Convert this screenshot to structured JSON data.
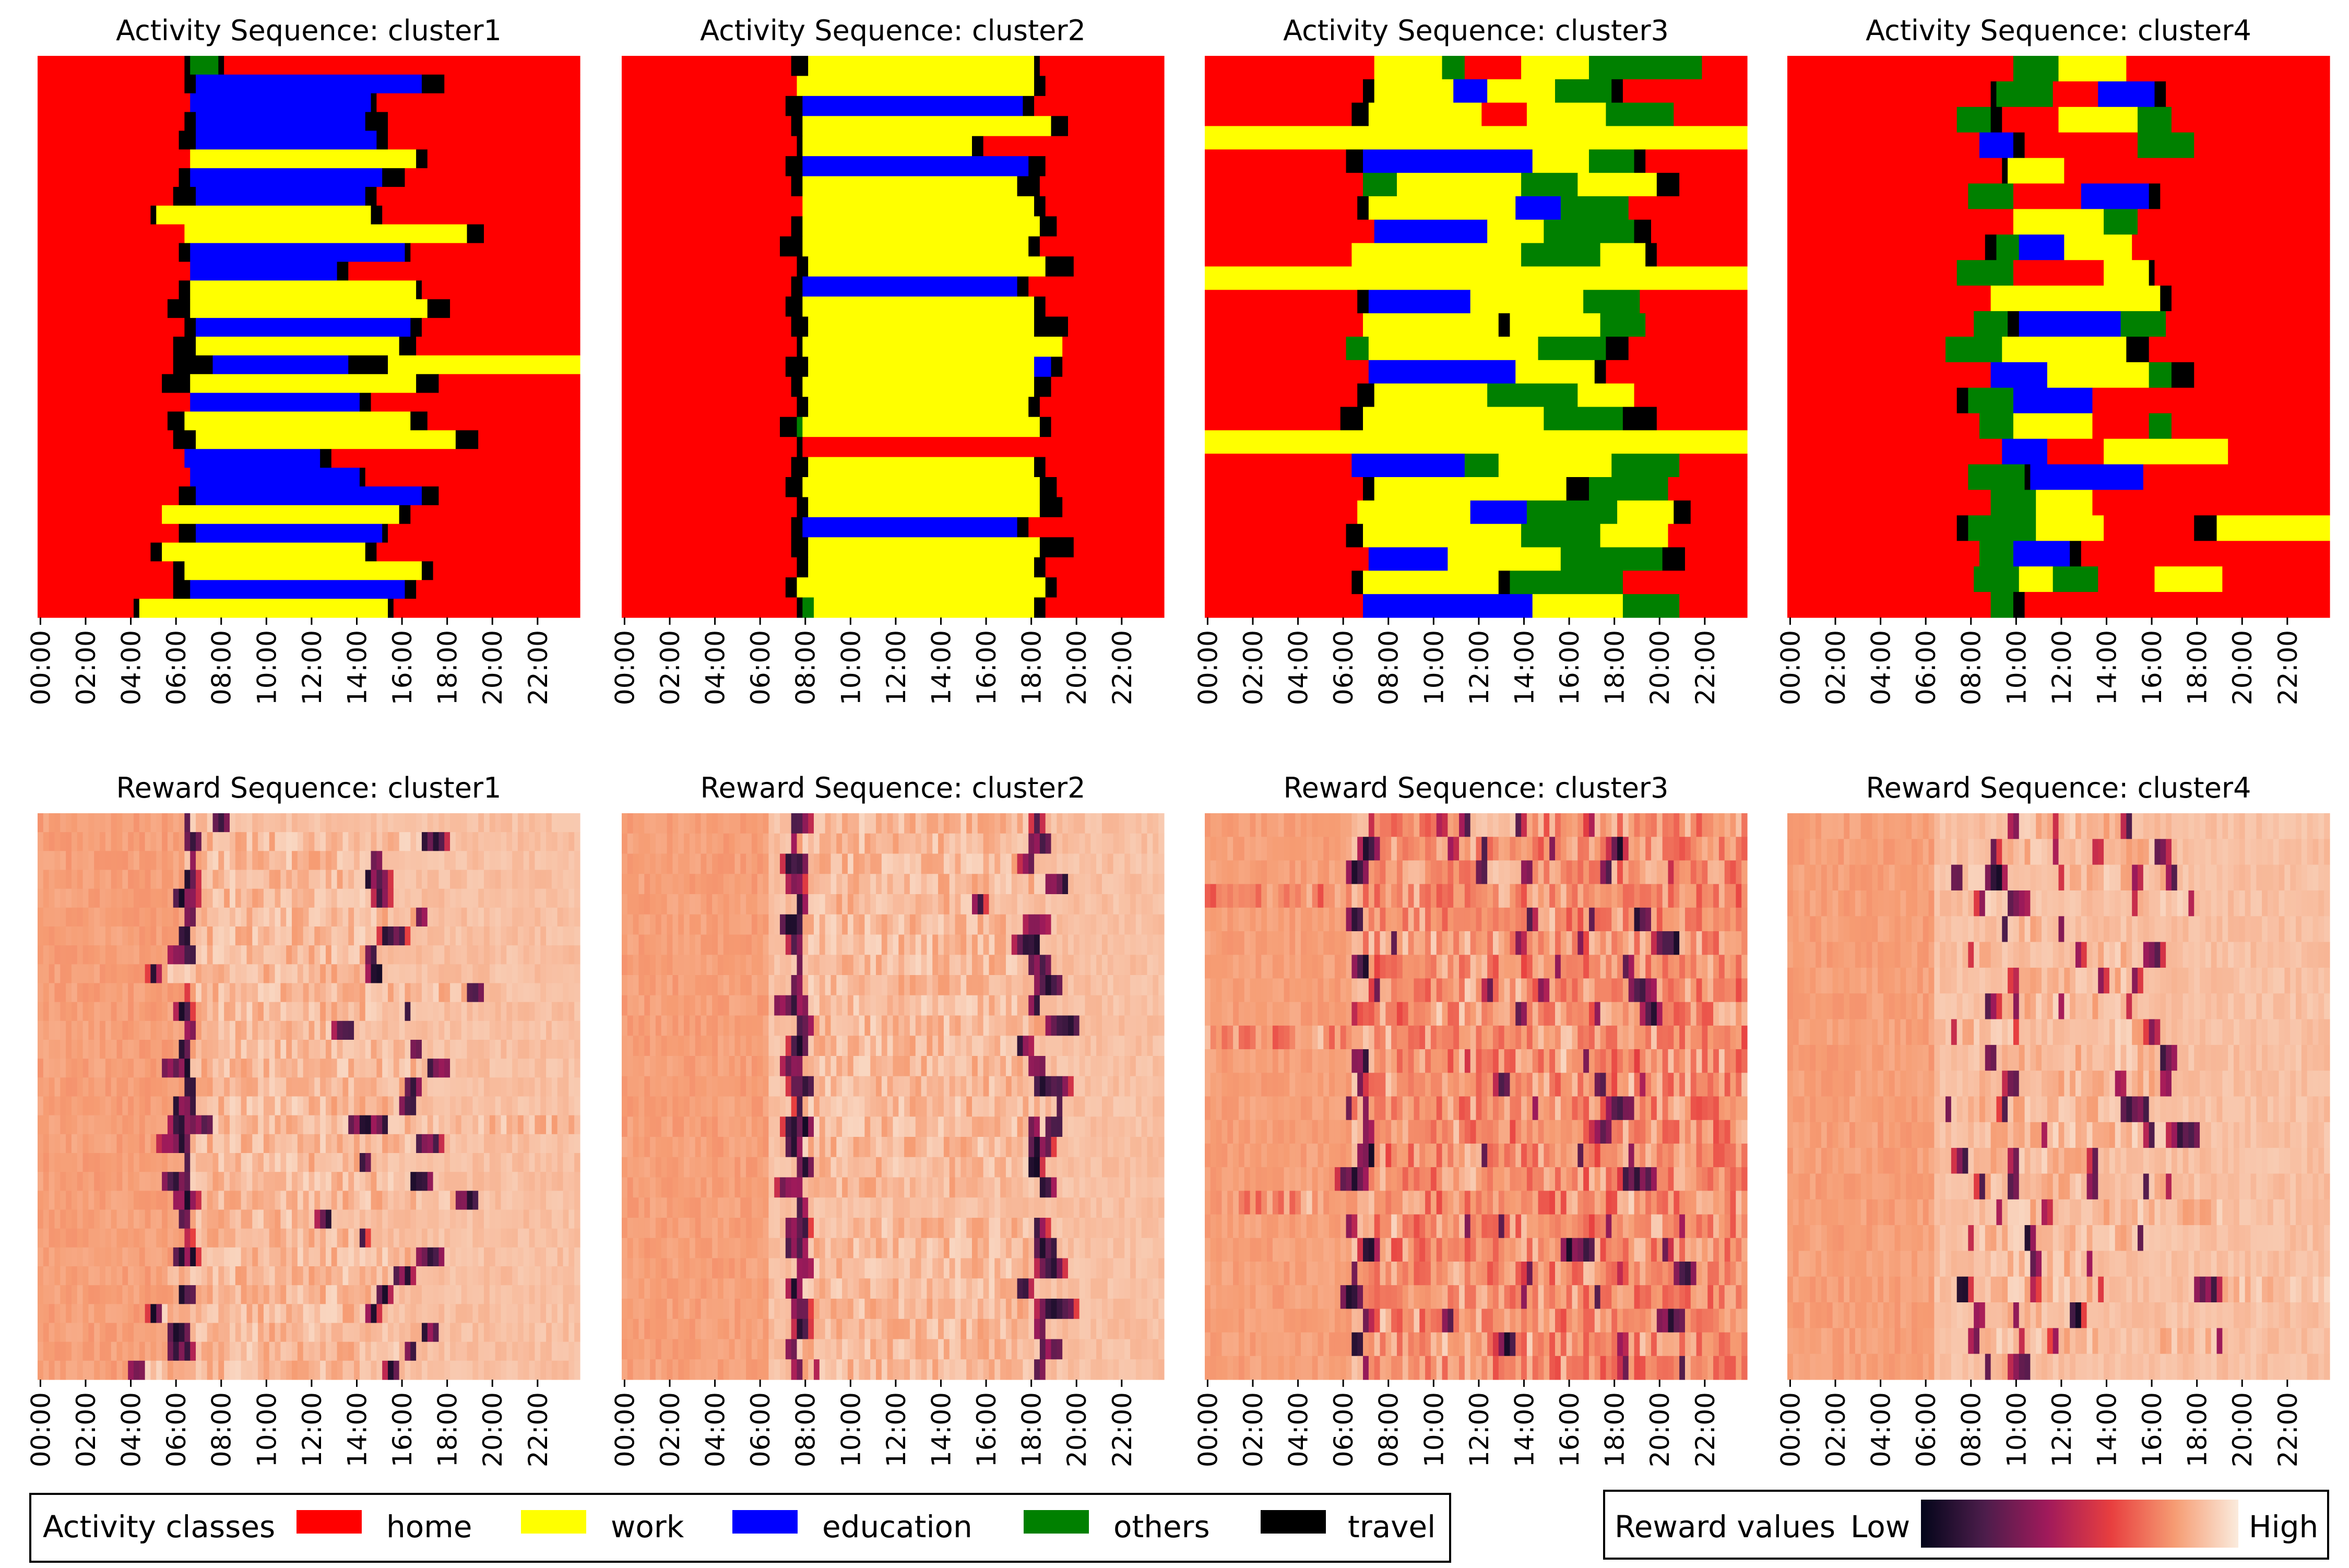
{
  "chart_data": [
    {
      "type": "heatmap",
      "title": "Activity Sequence: cluster1",
      "x_tick_labels": [
        "00:00",
        "02:00",
        "04:00",
        "06:00",
        "08:00",
        "10:00",
        "12:00",
        "14:00",
        "16:00",
        "18:00",
        "20:00",
        "22:00"
      ],
      "rows": [
        "h26 t1 o5 t1 h63",
        "h26 t2 e40 t4 h24",
        "h27 e32 t1 h36",
        "h26 t2 e30 t4 h34",
        "h25 t3 e32 t2 h34",
        "h27 w40 t2 h27",
        "h25 t2 e34 t4 h31",
        "h24 t4 e30 t2 h36",
        "h20 t1 w38 t2 h35",
        "h26 w50 t3 h17",
        "h25 t2 e38 t1 h30",
        "h27 e26 t2 h41",
        "h25 t2 w40 t1 h28",
        "h23 t4 w42 t4 h23",
        "h26 t2 e38 t2 h28",
        "h24 t4 w36 t3 h29",
        "h24 t7 e24 t7 w34",
        "h22 t5 w40 t4 h25",
        "h27 e30 t2 h37",
        "h23 t3 w40 t3 h27",
        "h24 t4 w46 t4 h18",
        "h26 e24 t2 h44",
        "h27 e30 t1 h38",
        "h25 t3 e40 t3 h25",
        "h22 w42 t2 h30",
        "h25 t3 e33 t1 h34",
        "h20 t2 w36 t2 h36",
        "h24 t2 w42 t2 h26",
        "h24 t3 e38 t2 h29",
        "h17 t1 w44 t1 h33"
      ]
    },
    {
      "type": "heatmap",
      "title": "Activity Sequence: cluster2",
      "x_tick_labels": [
        "00:00",
        "02:00",
        "04:00",
        "06:00",
        "08:00",
        "10:00",
        "12:00",
        "14:00",
        "16:00",
        "18:00",
        "20:00",
        "22:00"
      ],
      "rows": [
        "h30 t3 w40 t1 h22",
        "h31 w42 t2 h21",
        "h29 t3 e39 t2 h23",
        "h30 t2 w44 t3 h17",
        "h31 t1 w30 t2 h32",
        "h29 t3 e40 t3 h21",
        "h30 t2 w38 t4 h22",
        "h32 w41 t2 h21",
        "h30 t2 w42 t3 h19",
        "h28 t4 w40 t2 h22",
        "h31 t2 w42 t5 h16",
        "h30 t2 e38 t2 h24",
        "h29 t3 w41 t2 h21",
        "h30 t3 w40 t6 h17",
        "h31 t1 w46 h18",
        "h29 t4 w40 e3 t2 h18",
        "h30 t2 w41 t3 h20",
        "h31 t2 w39 t2 h22",
        "h28 t3 o1 w42 t2 h20",
        "h31 t1 h64",
        "h30 t3 w40 t2 h21",
        "h29 t3 w42 t3 h19",
        "h31 t2 w41 t4 h18",
        "h30 t2 e38 t2 h24",
        "h30 t3 w41 t6 h16",
        "h31 t2 w40 t2 h21",
        "h29 t2 w44 t2 h19",
        "h31 t1 o2 w39 t2 h21"
      ]
    },
    {
      "type": "heatmap",
      "title": "Activity Sequence: cluster3",
      "x_tick_labels": [
        "00:00",
        "02:00",
        "04:00",
        "06:00",
        "08:00",
        "10:00",
        "12:00",
        "14:00",
        "16:00",
        "18:00",
        "20:00",
        "22:00"
      ],
      "rows": [
        "h30 w12 o4 h10 w12 o20 h8",
        "h28 t2 w14 e6 w12 o10 t2 h22",
        "h26 t3 w20 h8 w14 o12 h13",
        "w96",
        "h25 t3 e30 w10 o8 t2 h18",
        "h28 o6 w22 o10 w14 t4 h12",
        "h27 t2 w26 e8 o12 h21",
        "h30 e20 w10 o16 t3 h17",
        "h26 w30 o14 w8 t2 h16",
        "w96",
        "h27 t2 e18 w20 o10 h19",
        "h28 w24 t2 w16 o8 h18",
        "h25 o4 w30 o12 t4 h21",
        "h29 e26 w14 t2 h25",
        "h27 t3 w20 o16 w10 h20",
        "h24 t4 w32 o14 t6 h16",
        "w96",
        "h26 e20 o6 w20 o12 h12",
        "h28 t2 w34 t4 o14 h14",
        "h27 w20 e10 o16 w10 t3 h10",
        "h25 t3 w28 o14 w12 h14",
        "h29 e14 w20 o18 t4 h11",
        "h26 t2 w24 t2 o20 h22",
        "h28 e30 w16 o10 h12"
      ]
    },
    {
      "type": "heatmap",
      "title": "Activity Sequence: cluster4",
      "x_tick_labels": [
        "00:00",
        "02:00",
        "04:00",
        "06:00",
        "08:00",
        "10:00",
        "12:00",
        "14:00",
        "16:00",
        "18:00",
        "20:00",
        "22:00"
      ],
      "rows": [
        "h40 o8 w12 h36",
        "h36 t1 o10 h8 e10 t2 h29",
        "h30 o6 t2 h10 w14 o6 h28",
        "h34 e6 t2 h20 o10 h24",
        "h38 t1 w10 h47",
        "h32 o8 h12 e12 t2 h30",
        "h40 w16 o6 h34",
        "h35 t2 o4 e8 w12 h35",
        "h30 o10 h16 w8 t1 h31",
        "h36 w30 t2 h28",
        "h33 o6 t2 e18 o8 h29",
        "h28 o10 w22 t4 h32",
        "h36 e10 w18 o4 t4 h24",
        "h30 t2 o8 e14 h42",
        "h34 o6 w14 h10 o4 h28",
        "h38 e8 h10 w22 h18",
        "h32 o10 t1 e20 h33",
        "h36 o8 w10 h42",
        "h30 t2 o12 w12 h16 t4 w20",
        "h34 o6 e10 t2 h44",
        "h33 o8 w6 o8 h10 w12 h19",
        "h36 o4 t2 h54"
      ]
    },
    {
      "type": "heatmap",
      "title": "Reward Sequence: cluster1",
      "x_tick_labels": [
        "00:00",
        "02:00",
        "04:00",
        "06:00",
        "08:00",
        "10:00",
        "12:00",
        "14:00",
        "16:00",
        "18:00",
        "20:00",
        "22:00"
      ],
      "value_scale": [
        "Low",
        "High"
      ]
    },
    {
      "type": "heatmap",
      "title": "Reward Sequence: cluster2",
      "x_tick_labels": [
        "00:00",
        "02:00",
        "04:00",
        "06:00",
        "08:00",
        "10:00",
        "12:00",
        "14:00",
        "16:00",
        "18:00",
        "20:00",
        "22:00"
      ],
      "value_scale": [
        "Low",
        "High"
      ]
    },
    {
      "type": "heatmap",
      "title": "Reward Sequence: cluster3",
      "x_tick_labels": [
        "00:00",
        "02:00",
        "04:00",
        "06:00",
        "08:00",
        "10:00",
        "12:00",
        "14:00",
        "16:00",
        "18:00",
        "20:00",
        "22:00"
      ],
      "value_scale": [
        "Low",
        "High"
      ]
    },
    {
      "type": "heatmap",
      "title": "Reward Sequence: cluster4",
      "x_tick_labels": [
        "00:00",
        "02:00",
        "04:00",
        "06:00",
        "08:00",
        "10:00",
        "12:00",
        "14:00",
        "16:00",
        "18:00",
        "20:00",
        "22:00"
      ],
      "value_scale": [
        "Low",
        "High"
      ]
    }
  ],
  "activity_legend": {
    "title": "Activity classes",
    "items": [
      {
        "code": "h",
        "label": "home",
        "color": "#ff0000"
      },
      {
        "code": "w",
        "label": "work",
        "color": "#ffff00"
      },
      {
        "code": "e",
        "label": "education",
        "color": "#0000ff"
      },
      {
        "code": "o",
        "label": "others",
        "color": "#008000"
      },
      {
        "code": "t",
        "label": "travel",
        "color": "#000000"
      }
    ]
  },
  "reward_legend": {
    "title": "Reward values",
    "low_label": "Low",
    "high_label": "High",
    "colormap": [
      "#03051a",
      "#4c1d4b",
      "#a11a5b",
      "#e83f3f",
      "#f69c73",
      "#faebdd"
    ]
  }
}
